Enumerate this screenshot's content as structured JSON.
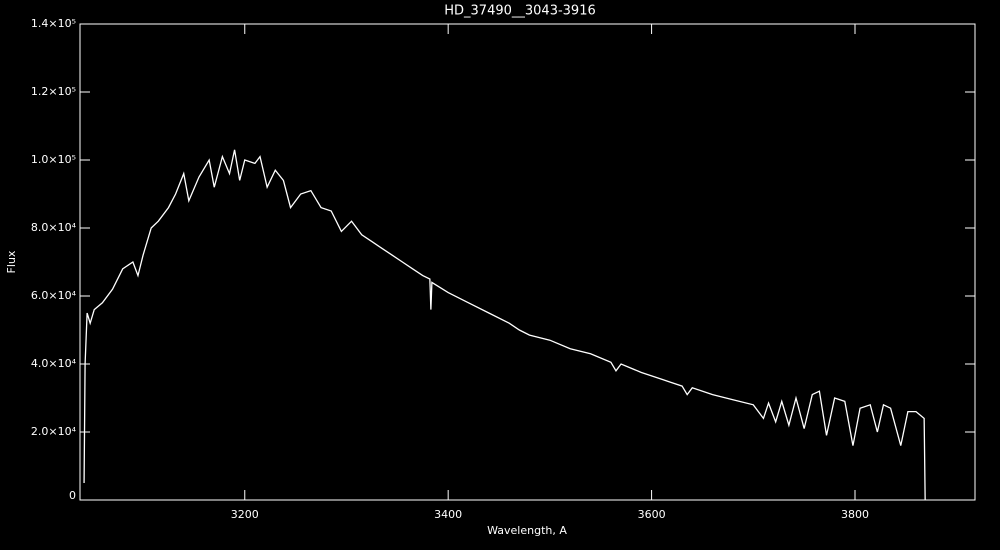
{
  "chart_data": {
    "type": "line",
    "title": "HD_37490__3043-3916",
    "xlabel": "Wavelength, A",
    "ylabel": "Flux",
    "xlim": [
      3038,
      3918
    ],
    "ylim": [
      0,
      140000
    ],
    "xticks": [
      3200,
      3400,
      3600,
      3800
    ],
    "yticks": [
      0,
      {
        "value": 20000,
        "label": "2.0×10⁴"
      },
      {
        "value": 40000,
        "label": "4.0×10⁴"
      },
      {
        "value": 60000,
        "label": "6.0×10⁴"
      },
      {
        "value": 80000,
        "label": "8.0×10⁴"
      },
      {
        "value": 100000,
        "label": "1.0×10⁵"
      },
      {
        "value": 120000,
        "label": "1.2×10⁵"
      },
      {
        "value": 140000,
        "label": "1.4×10⁵"
      }
    ],
    "series": [
      {
        "color": "#ffffff",
        "x": [
          3042,
          3043,
          3045,
          3048,
          3052,
          3060,
          3070,
          3080,
          3090,
          3095,
          3100,
          3108,
          3115,
          3125,
          3132,
          3140,
          3145,
          3155,
          3165,
          3170,
          3178,
          3185,
          3190,
          3195,
          3200,
          3210,
          3215,
          3222,
          3230,
          3238,
          3245,
          3255,
          3265,
          3275,
          3285,
          3295,
          3305,
          3315,
          3325,
          3335,
          3345,
          3355,
          3365,
          3375,
          3382,
          3383,
          3384,
          3400,
          3420,
          3440,
          3460,
          3470,
          3480,
          3500,
          3520,
          3540,
          3560,
          3565,
          3570,
          3590,
          3610,
          3630,
          3635,
          3640,
          3660,
          3680,
          3700,
          3710,
          3715,
          3722,
          3728,
          3735,
          3742,
          3750,
          3758,
          3765,
          3772,
          3780,
          3790,
          3798,
          3805,
          3815,
          3822,
          3828,
          3835,
          3845,
          3852,
          3860,
          3868,
          3869
        ],
        "values": [
          5000,
          40000,
          55000,
          52000,
          56000,
          58000,
          62000,
          68000,
          70000,
          66000,
          72000,
          80000,
          82000,
          86000,
          90000,
          96000,
          88000,
          95000,
          100000,
          92000,
          101000,
          96000,
          103000,
          94000,
          100000,
          99000,
          101000,
          92000,
          97000,
          94000,
          86000,
          90000,
          91000,
          86000,
          85000,
          79000,
          82000,
          78000,
          76000,
          74000,
          72000,
          70000,
          68000,
          66000,
          65000,
          56000,
          64000,
          61000,
          58000,
          55000,
          52000,
          50000,
          48500,
          47000,
          44500,
          43000,
          40500,
          38000,
          40000,
          37500,
          35500,
          33500,
          31000,
          33000,
          31000,
          29500,
          28000,
          24000,
          28500,
          23000,
          29000,
          22000,
          30000,
          21000,
          31000,
          32000,
          19000,
          30000,
          29000,
          16000,
          27000,
          28000,
          20000,
          28000,
          27000,
          16000,
          26000,
          26000,
          24000,
          0
        ]
      }
    ]
  }
}
